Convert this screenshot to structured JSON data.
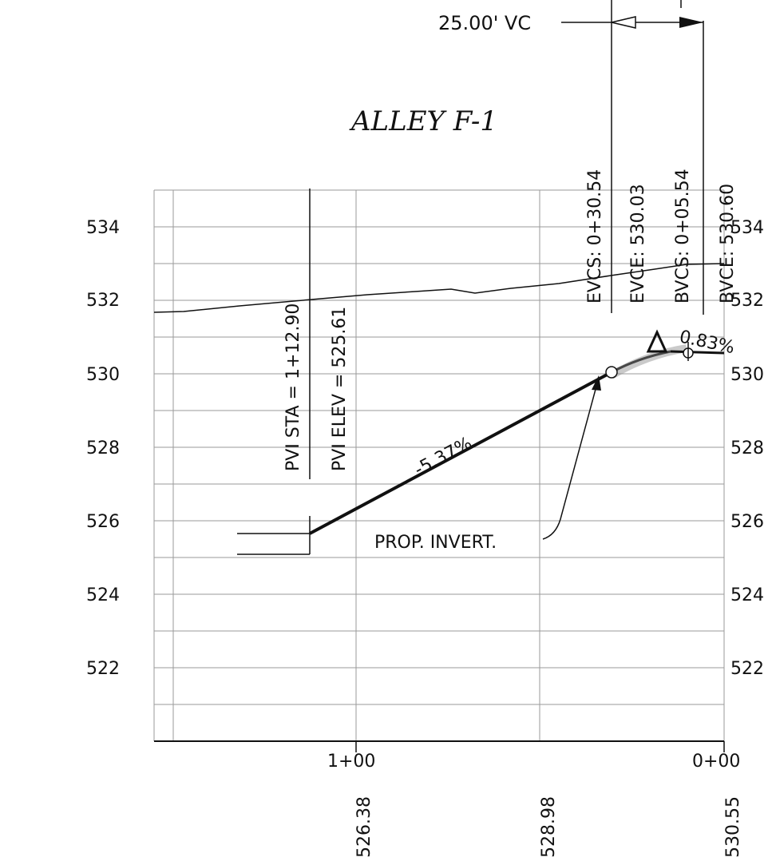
{
  "title": "ALLEY F-1",
  "vertical_curve": {
    "label": "25.00' VC"
  },
  "stations_vertical": [
    {
      "key": "evcs",
      "text": "EVCS: 0+30.54"
    },
    {
      "key": "evce",
      "text": "EVCE: 530.03"
    },
    {
      "key": "bvcs",
      "text": "BVCS: 0+05.54"
    },
    {
      "key": "bvce",
      "text": "BVCE: 530.60"
    }
  ],
  "pvi": {
    "sta": "PVI STA = 1+12.90",
    "elev": "PVI ELEV = 525.61"
  },
  "grades": {
    "g1": "-5.37%",
    "g2": "0.83%"
  },
  "callout": "PROP. INVERT.",
  "elevations_left": [
    "534",
    "532",
    "530",
    "528",
    "526",
    "524",
    "522"
  ],
  "elevations_right": [
    "534",
    "532",
    "530",
    "528",
    "526",
    "524",
    "522"
  ],
  "stations_bottom": [
    "1+00",
    "0+00"
  ],
  "bottom_elevations": [
    "526.38",
    "528.98",
    "530.55"
  ],
  "colors": {
    "line": "#111111",
    "grid": "#9a9a9a"
  }
}
